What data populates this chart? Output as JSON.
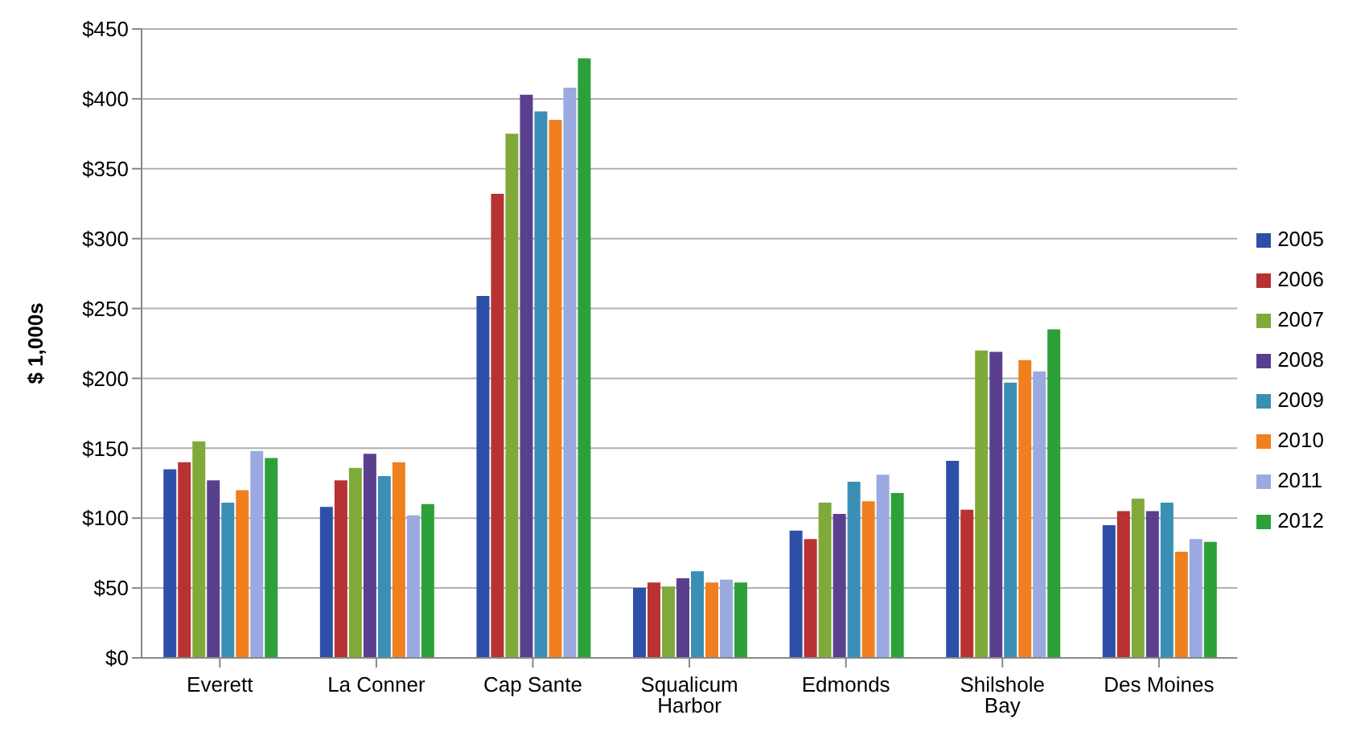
{
  "chart_data": {
    "type": "bar",
    "ylabel": "$ 1,000s",
    "categories": [
      "Everett",
      "La Conner",
      "Cap Sante",
      "Squalicum Harbor",
      "Edmonds",
      "Shilshole Bay",
      "Des Moines"
    ],
    "series": [
      {
        "name": "2005",
        "color": "#2e4fa8",
        "values": [
          135,
          108,
          259,
          50,
          91,
          141,
          95
        ]
      },
      {
        "name": "2006",
        "color": "#b83232",
        "values": [
          140,
          127,
          332,
          54,
          85,
          106,
          105
        ]
      },
      {
        "name": "2007",
        "color": "#7faa3a",
        "values": [
          155,
          136,
          375,
          51,
          111,
          220,
          114
        ]
      },
      {
        "name": "2008",
        "color": "#5b3f8f",
        "values": [
          127,
          146,
          403,
          57,
          103,
          219,
          105
        ]
      },
      {
        "name": "2009",
        "color": "#3a8fb5",
        "values": [
          111,
          130,
          391,
          62,
          126,
          197,
          111
        ]
      },
      {
        "name": "2010",
        "color": "#f07f20",
        "values": [
          120,
          140,
          385,
          54,
          112,
          213,
          76
        ]
      },
      {
        "name": "2011",
        "color": "#9aaae0",
        "values": [
          148,
          102,
          408,
          56,
          131,
          205,
          85
        ]
      },
      {
        "name": "2012",
        "color": "#2ea03a",
        "values": [
          143,
          110,
          429,
          54,
          118,
          235,
          83
        ]
      }
    ],
    "ylim": [
      0,
      450
    ],
    "yticks": [
      {
        "value": 0,
        "label": "$0"
      },
      {
        "value": 50,
        "label": "$50"
      },
      {
        "value": 100,
        "label": "$100"
      },
      {
        "value": 150,
        "label": "$150"
      },
      {
        "value": 200,
        "label": "$200"
      },
      {
        "value": 250,
        "label": "$250"
      },
      {
        "value": 300,
        "label": "$300"
      },
      {
        "value": 350,
        "label": "$350"
      },
      {
        "value": 400,
        "label": "$400"
      },
      {
        "value": 450,
        "label": "$450"
      }
    ],
    "grid": "y",
    "legend": "right"
  }
}
